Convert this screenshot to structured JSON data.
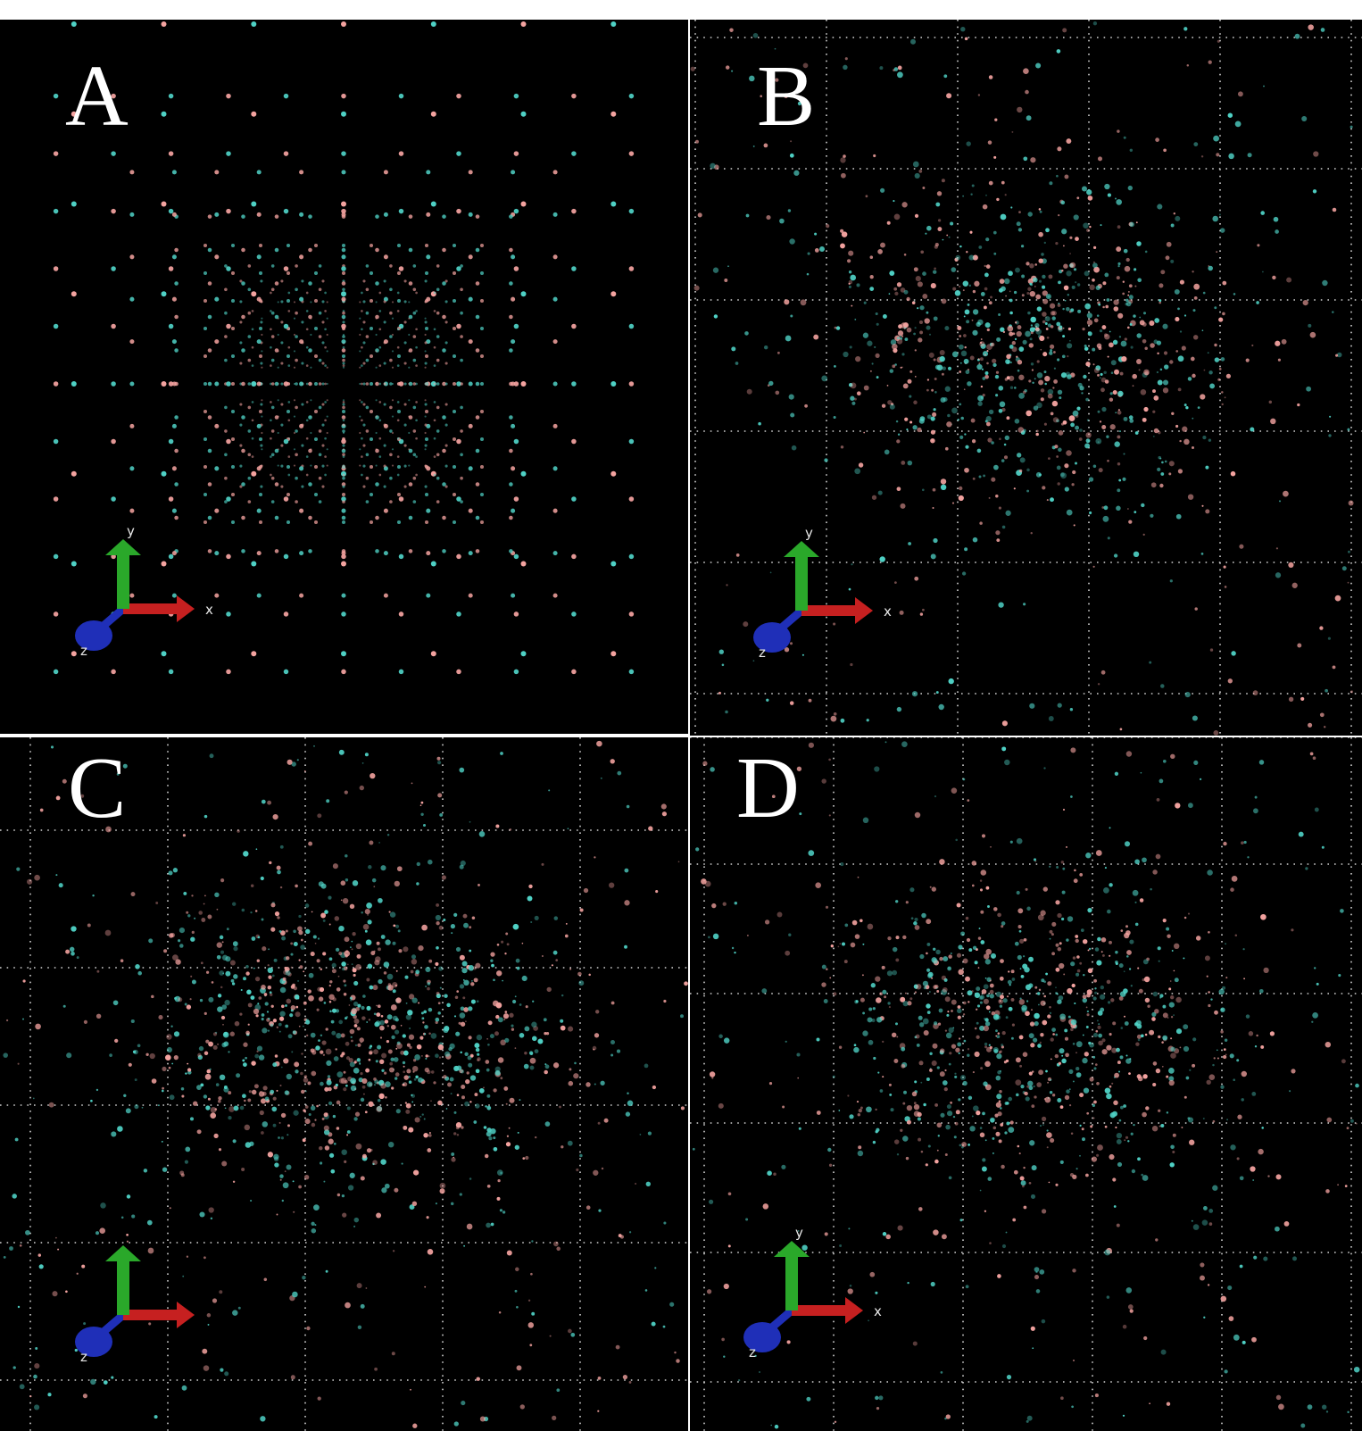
{
  "figure": {
    "panels": [
      {
        "letter": "A",
        "view": "regular radial grid"
      },
      {
        "letter": "B",
        "view": "scattered points"
      },
      {
        "letter": "C",
        "view": "scattered points"
      },
      {
        "letter": "D",
        "view": "scattered points"
      }
    ],
    "axis_triad": {
      "x_label": "x",
      "y_label": "y",
      "z_label": "z"
    },
    "colors": {
      "background": "#000000",
      "point_pink": "#f4a3a0",
      "point_cyan": "#4fd1c5",
      "grid_dots": "#d0d0d0",
      "axis_x": "#c62020",
      "axis_y": "#2aa82a",
      "axis_z": "#1f2fb8"
    }
  }
}
